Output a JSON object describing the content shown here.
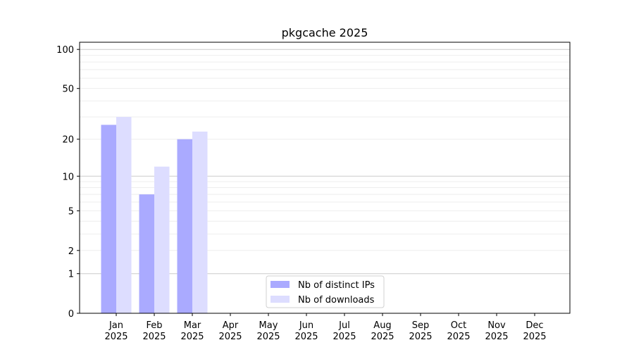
{
  "chart_data": {
    "type": "bar",
    "title": "pkgcache 2025",
    "xlabel": "",
    "ylabel": "",
    "yscale": "symlog",
    "ylim": [
      0,
      113
    ],
    "yticks": [
      0,
      1,
      2,
      5,
      10,
      20,
      50,
      100
    ],
    "grid": true,
    "legend_position": "bottom-center",
    "categories": [
      "Jan\n2025",
      "Feb\n2025",
      "Mar\n2025",
      "Apr\n2025",
      "May\n2025",
      "Jun\n2025",
      "Jul\n2025",
      "Aug\n2025",
      "Sep\n2025",
      "Oct\n2025",
      "Nov\n2025",
      "Dec\n2025"
    ],
    "series": [
      {
        "name": "Nb of distinct IPs",
        "color": "#aaaaff",
        "values": [
          26,
          7,
          20,
          0,
          0,
          0,
          0,
          0,
          0,
          0,
          0,
          0
        ]
      },
      {
        "name": "Nb of downloads",
        "color": "#ddddff",
        "values": [
          30,
          12,
          23,
          0,
          0,
          0,
          0,
          0,
          0,
          0,
          0,
          0
        ]
      }
    ]
  }
}
